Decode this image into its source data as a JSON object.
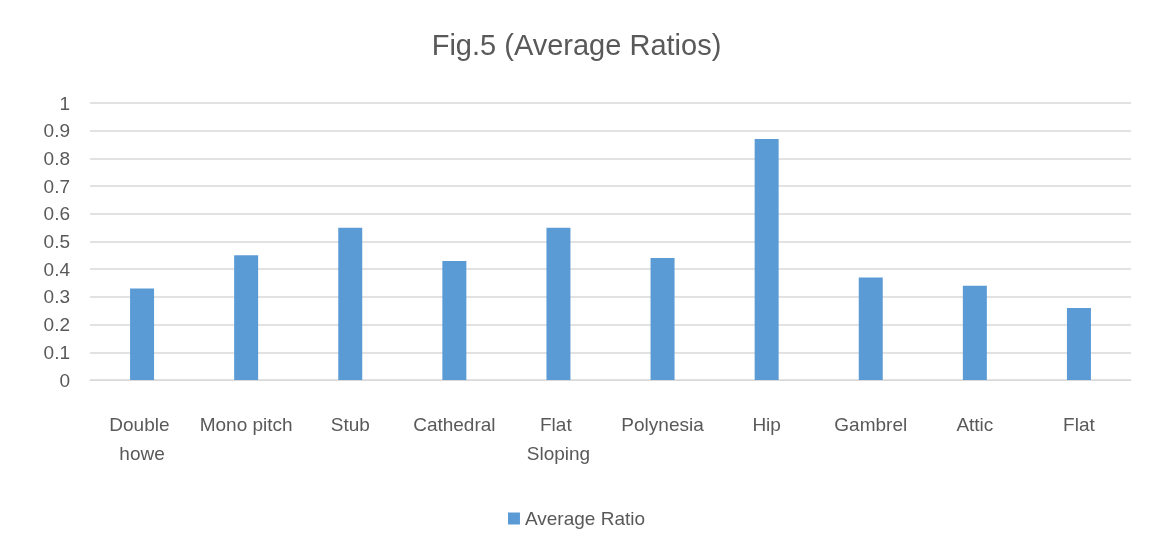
{
  "chart_data": {
    "type": "bar",
    "title": "Fig.5 (Average Ratios)",
    "categories": [
      "Double howe",
      "Mono pitch",
      "Stub",
      "Cathedral",
      "Flat Sloping",
      "Polynesia",
      "Hip",
      "Gambrel",
      "Attic",
      "Flat"
    ],
    "series": [
      {
        "name": "Average Ratio",
        "color": "#5b9bd5",
        "values": [
          0.33,
          0.45,
          0.55,
          0.43,
          0.55,
          0.44,
          0.87,
          0.37,
          0.34,
          0.26
        ]
      }
    ],
    "ylim": [
      0,
      1
    ],
    "yticks": [
      0,
      0.1,
      0.2,
      0.3,
      0.4,
      0.5,
      0.6,
      0.7,
      0.8,
      0.9,
      1
    ],
    "grid": true,
    "legend": "bottom"
  }
}
